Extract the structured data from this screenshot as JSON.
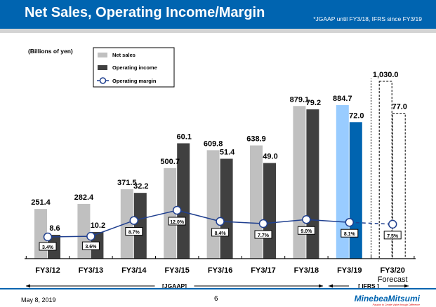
{
  "header": {
    "title": "Net Sales, Operating Income/Margin",
    "note": "*JGAAP until FY3/18, IFRS since FY3/19"
  },
  "footer": {
    "date": "May 8, 2019",
    "page": "6",
    "logo": "MinebeaMitsumi",
    "tagline": "Passion to Create Value through Difference"
  },
  "colors": {
    "net_sales": "#c0c0c0",
    "operating_income": "#404040",
    "ifrs_net_sales": "#99ccff",
    "ifrs_operating_income": "#0064b0",
    "margin_line": "#1f3f8f"
  },
  "chart_data": {
    "type": "bar",
    "unit_label": "(Billions of yen)",
    "categories": [
      "FY3/12",
      "FY3/13",
      "FY3/14",
      "FY3/15",
      "FY3/16",
      "FY3/17",
      "FY3/18",
      "FY3/19",
      "FY3/20"
    ],
    "category_sublabels": [
      "",
      "",
      "",
      "",
      "",
      "",
      "",
      "",
      "Forecast"
    ],
    "series": [
      {
        "name": "Net sales",
        "values": [
          251.4,
          282.4,
          371.5,
          500.7,
          609.8,
          638.9,
          879.1,
          884.7,
          1030.0
        ],
        "labels": [
          "251.4",
          "282.4",
          "371.5",
          "500.7",
          "609.8",
          "638.9",
          "879.1",
          "884.7",
          "1,030.0"
        ]
      },
      {
        "name": "Operating income",
        "values": [
          8.6,
          10.2,
          32.2,
          60.1,
          51.4,
          49.0,
          79.2,
          72.0,
          77.0
        ],
        "labels": [
          "8.6",
          "10.2",
          "32.2",
          "60.1",
          "51.4",
          "49.0",
          "79.2",
          "72.0",
          "77.0"
        ]
      },
      {
        "name": "Operating margin",
        "type": "line",
        "values": [
          3.4,
          3.6,
          8.7,
          12.0,
          8.4,
          7.7,
          9.0,
          8.1,
          7.5
        ],
        "labels": [
          "3.4%",
          "3.6%",
          "8.7%",
          "12.0%",
          "8.4%",
          "7.7%",
          "9.0%",
          "8.1%",
          "7.5%"
        ]
      }
    ],
    "legend": {
      "position": "top-left",
      "items": [
        "Net sales",
        "Operating income",
        "Operating margin"
      ]
    },
    "periods": [
      {
        "label": "[JGAAP]"
      },
      {
        "label": "[ IFRS ]"
      }
    ],
    "forecast_style": "dashed outline",
    "grid": false
  }
}
